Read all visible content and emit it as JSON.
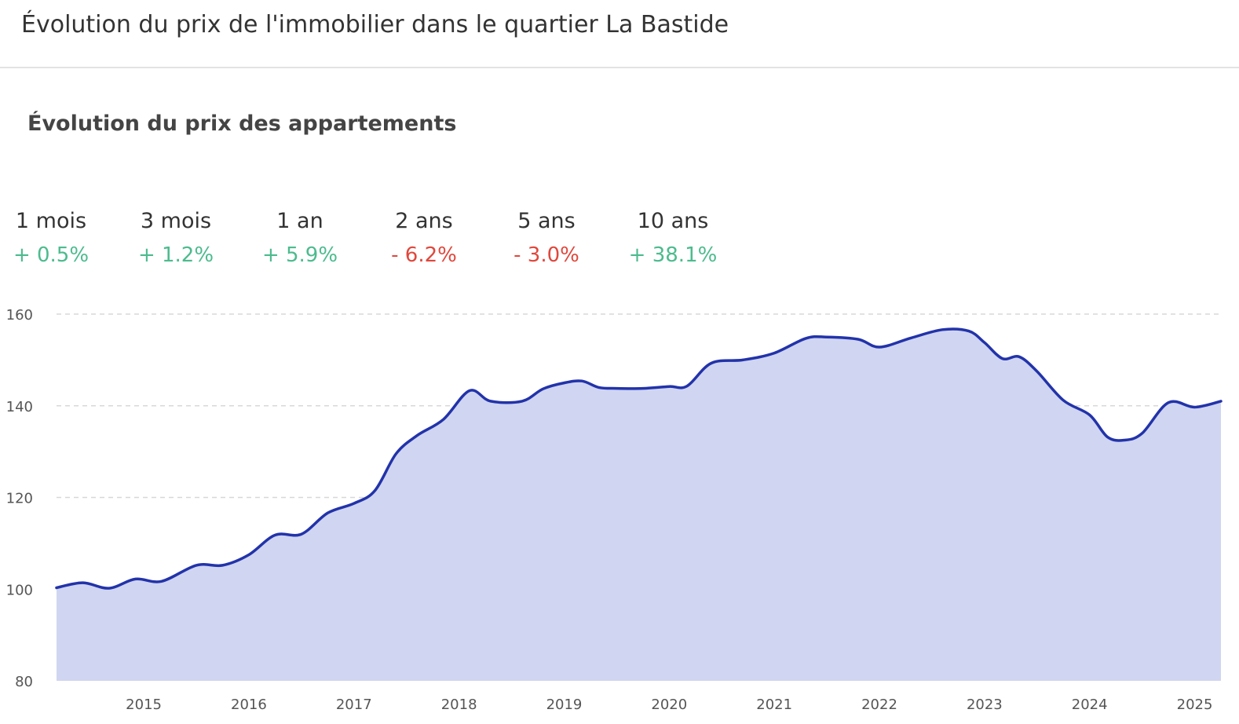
{
  "header": {
    "title": "Évolution du prix de l'immobilier dans le quartier La Bastide"
  },
  "section": {
    "title": "Évolution du prix des appartements"
  },
  "stats": [
    {
      "period": "1 mois",
      "value": "+ 0.5%",
      "trend": "pos"
    },
    {
      "period": "3 mois",
      "value": "+ 1.2%",
      "trend": "pos"
    },
    {
      "period": "1 an",
      "value": "+ 5.9%",
      "trend": "pos"
    },
    {
      "period": "2 ans",
      "value": "- 6.2%",
      "trend": "neg"
    },
    {
      "period": "5 ans",
      "value": "- 3.0%",
      "trend": "neg"
    },
    {
      "period": "10 ans",
      "value": "+ 38.1%",
      "trend": "pos"
    }
  ],
  "colors": {
    "line": "#2233aa",
    "area": "#d0d5f1",
    "positive": "#4cbb8e",
    "negative": "#e0473c",
    "grid": "#d8d8d8"
  },
  "chart_data": {
    "type": "area",
    "title": "",
    "xlabel": "",
    "ylabel": "",
    "ylim": [
      80,
      160
    ],
    "yticks": [
      80,
      100,
      120,
      140,
      160
    ],
    "xticks": [
      "2015",
      "2016",
      "2017",
      "2018",
      "2019",
      "2020",
      "2021",
      "2022",
      "2023",
      "2024",
      "2025"
    ],
    "xlim": [
      2014.17,
      2025.25
    ],
    "grid": true,
    "legend": "none",
    "series": [
      {
        "x": [
          2014.17,
          2014.42,
          2014.67,
          2014.92,
          2015.17,
          2015.5,
          2015.75,
          2016.0,
          2016.25,
          2016.5,
          2016.75,
          2017.0,
          2017.2,
          2017.4,
          2017.6,
          2017.85,
          2018.1,
          2018.3,
          2018.6,
          2018.8,
          2019.0,
          2019.17,
          2019.33,
          2019.5,
          2019.75,
          2020.0,
          2020.17,
          2020.4,
          2020.7,
          2021.0,
          2021.3,
          2021.5,
          2021.8,
          2022.0,
          2022.3,
          2022.6,
          2022.85,
          2023.0,
          2023.17,
          2023.33,
          2023.5,
          2023.75,
          2024.0,
          2024.17,
          2024.33,
          2024.5,
          2024.75,
          2025.0,
          2025.25
        ],
        "y": [
          100.3,
          101.4,
          100.2,
          102.2,
          101.7,
          105.2,
          105.2,
          107.5,
          111.8,
          112.0,
          116.6,
          118.7,
          121.5,
          129.5,
          133.5,
          137.0,
          143.3,
          141.0,
          141.0,
          143.7,
          145.0,
          145.4,
          144.0,
          143.8,
          143.8,
          144.2,
          144.3,
          149.3,
          150.0,
          151.5,
          154.7,
          155.0,
          154.5,
          152.8,
          154.8,
          156.6,
          156.3,
          153.8,
          150.3,
          150.7,
          147.5,
          141.2,
          138.0,
          133.2,
          132.5,
          134.0,
          140.7,
          139.7,
          141.0
        ]
      }
    ]
  }
}
